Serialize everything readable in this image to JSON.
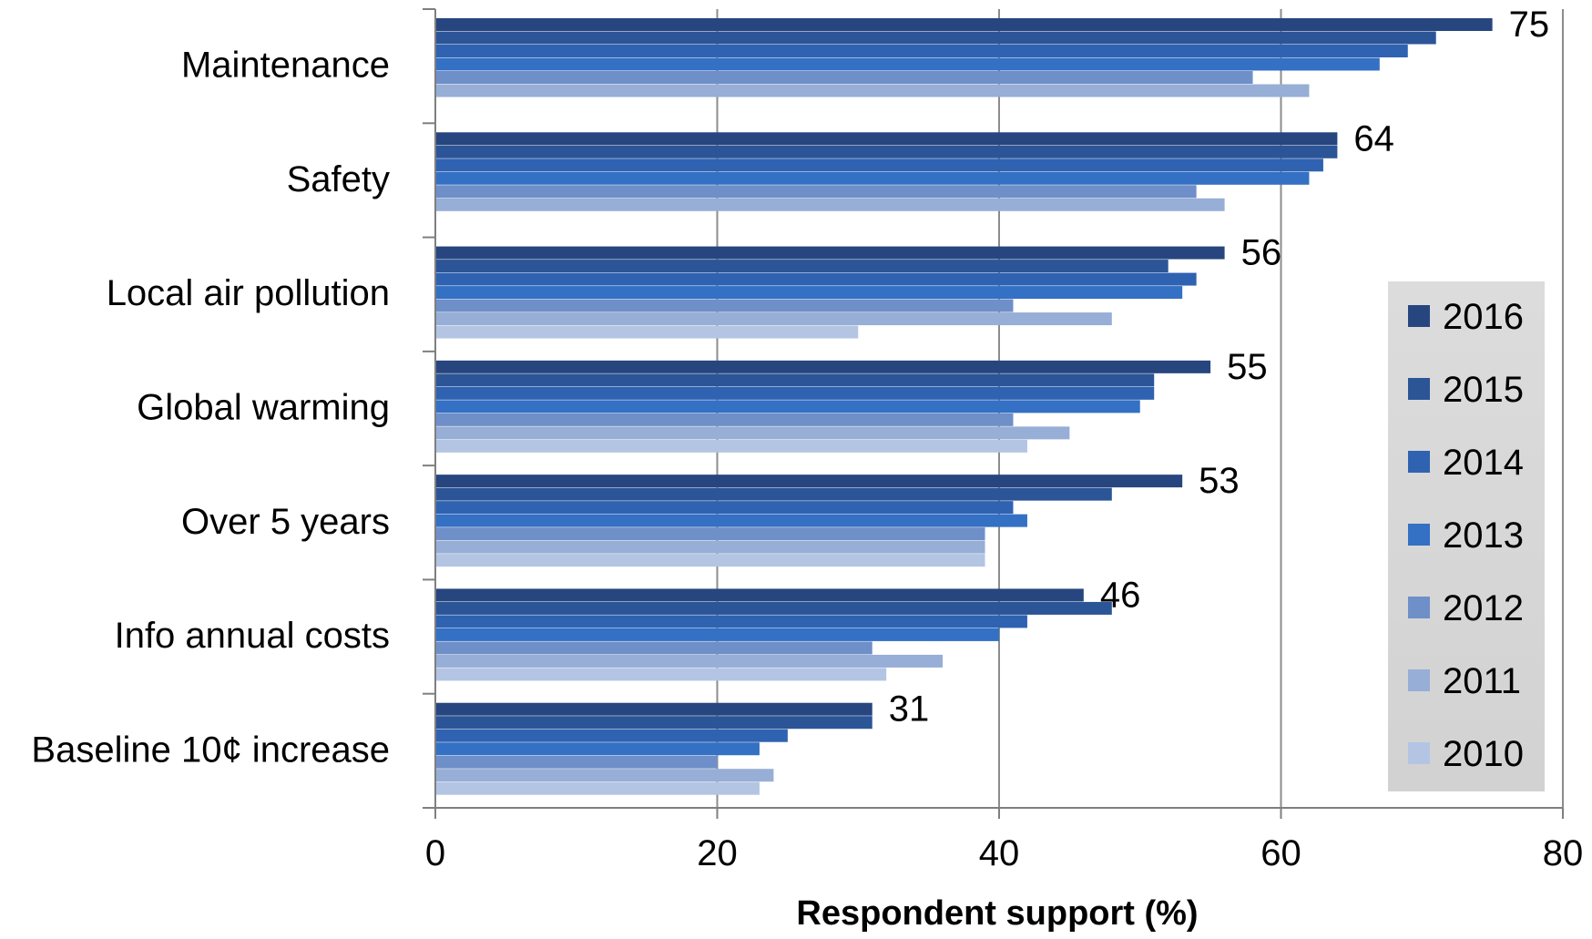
{
  "chart_data": {
    "type": "bar",
    "orientation": "horizontal",
    "title": "",
    "xlabel": "Respondent support (%)",
    "ylabel": "",
    "xlim": [
      0,
      80
    ],
    "xticks": [
      0,
      20,
      40,
      60,
      80
    ],
    "grid": "vertical",
    "legend_position": "right",
    "categories": [
      "Maintenance",
      "Safety",
      "Local air pollution",
      "Global warming",
      "Over 5 years",
      "Info annual costs",
      "Baseline 10¢ increase"
    ],
    "series": [
      {
        "name": "2016",
        "color": "#27467f",
        "values": [
          75,
          64,
          56,
          55,
          53,
          46,
          31
        ]
      },
      {
        "name": "2015",
        "color": "#2b5597",
        "values": [
          71,
          64,
          52,
          51,
          48,
          48,
          31
        ]
      },
      {
        "name": "2014",
        "color": "#2f62b1",
        "values": [
          69,
          63,
          54,
          51,
          41,
          42,
          25
        ]
      },
      {
        "name": "2013",
        "color": "#3470c4",
        "values": [
          67,
          62,
          53,
          50,
          42,
          40,
          23
        ]
      },
      {
        "name": "2012",
        "color": "#6f8fc9",
        "values": [
          58,
          54,
          41,
          41,
          39,
          31,
          20
        ]
      },
      {
        "name": "2011",
        "color": "#97aed6",
        "values": [
          62,
          56,
          48,
          45,
          39,
          36,
          24
        ]
      },
      {
        "name": "2010",
        "color": "#b4c5e3",
        "values": [
          null,
          null,
          30,
          42,
          39,
          32,
          23
        ]
      }
    ],
    "data_labels": [
      "75",
      "64",
      "56",
      "55",
      "53",
      "46",
      "31"
    ]
  }
}
